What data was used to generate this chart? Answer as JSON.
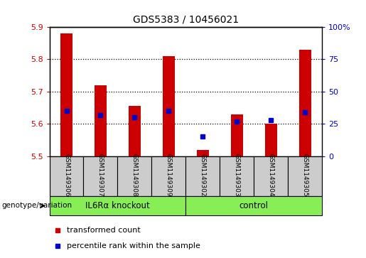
{
  "title": "GDS5383 / 10456021",
  "samples": [
    "GSM1149306",
    "GSM1149307",
    "GSM1149308",
    "GSM1149309",
    "GSM1149302",
    "GSM1149303",
    "GSM1149304",
    "GSM1149305"
  ],
  "bar_values": [
    5.88,
    5.72,
    5.655,
    5.81,
    5.52,
    5.63,
    5.6,
    5.83
  ],
  "bar_bottom": 5.5,
  "percentile_ranks": [
    35,
    32,
    30,
    35,
    15,
    27,
    28,
    34
  ],
  "ylim_left": [
    5.5,
    5.9
  ],
  "ylim_right": [
    0,
    100
  ],
  "yticks_left": [
    5.5,
    5.6,
    5.7,
    5.8,
    5.9
  ],
  "yticks_right": [
    0,
    25,
    50,
    75,
    100
  ],
  "ytick_labels_right": [
    "0",
    "25",
    "50",
    "75",
    "100%"
  ],
  "bar_color": "#cc0000",
  "percentile_color": "#0000cc",
  "group1_label": "IL6Rα knockout",
  "group2_label": "control",
  "group1_indices": [
    0,
    1,
    2,
    3
  ],
  "group2_indices": [
    4,
    5,
    6,
    7
  ],
  "group_bg_color": "#88ee55",
  "sample_bg_color": "#cccccc",
  "legend_bar_label": "transformed count",
  "legend_percentile_label": "percentile rank within the sample",
  "genotype_label": "genotype/variation",
  "grid_dotted_levels": [
    5.6,
    5.7,
    5.8
  ],
  "axis_bg_color": "#ffffff",
  "bar_width": 0.35
}
